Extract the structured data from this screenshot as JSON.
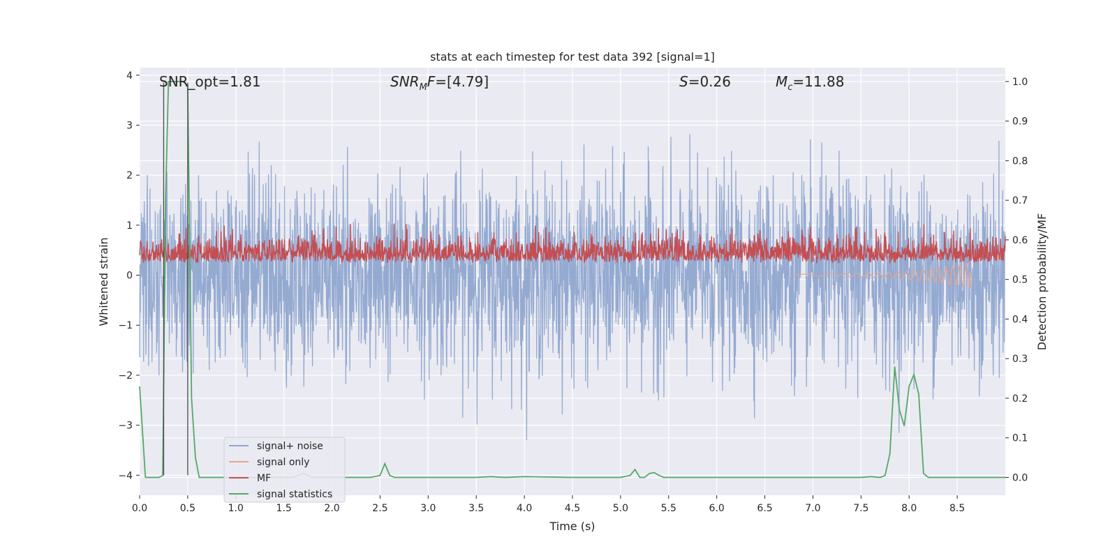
{
  "chart_data": {
    "type": "line",
    "title": "stats at each timestep for test data 392 [signal=1]",
    "xlabel": "Time (s)",
    "ylabel_left": "Whitened strain",
    "ylabel_right": "Detection probability/MF",
    "xlim": [
      0.0,
      9.0
    ],
    "ylim_left": [
      -4.4,
      4.15
    ],
    "ylim_right": [
      -0.045,
      1.035
    ],
    "x_ticks": [
      "0.0",
      "0.5",
      "1.0",
      "1.5",
      "2.0",
      "2.5",
      "3.0",
      "3.5",
      "4.0",
      "4.5",
      "5.0",
      "5.5",
      "6.0",
      "6.5",
      "7.0",
      "7.5",
      "8.0",
      "8.5"
    ],
    "y_ticks_left": [
      "-4",
      "-3",
      "-2",
      "-1",
      "0",
      "1",
      "2",
      "3",
      "4"
    ],
    "y_ticks_right": [
      "0.0",
      "0.1",
      "0.2",
      "0.3",
      "0.4",
      "0.5",
      "0.6",
      "0.7",
      "0.8",
      "0.9",
      "1.0"
    ],
    "grid": true,
    "legend_position": "lower-left",
    "annotations": {
      "snr_opt": "SNR_opt=1.81",
      "snr_mf_base": "SNR",
      "snr_mf_sub": "M",
      "snr_mf_rest": "F=[4.79]",
      "s_base": "S",
      "s_rest": "=0.26",
      "mc_base": "M",
      "mc_sub": "c",
      "mc_rest": "=11.88"
    },
    "vertical_lines_x": [
      0.25,
      0.5
    ],
    "series": [
      {
        "name": "signal+ noise",
        "color": "#8fa6cf",
        "description_range": [
          -3.3,
          3.7
        ]
      },
      {
        "name": "signal only",
        "color": "#e8a58c"
      },
      {
        "name": "MF",
        "color": "#c44e52"
      },
      {
        "name": "signal statistics",
        "color": "#55a868",
        "x": [
          0.0,
          0.06,
          0.1,
          0.15,
          0.2,
          0.24,
          0.27,
          0.3,
          0.35,
          0.4,
          0.45,
          0.5,
          0.54,
          0.58,
          0.62,
          0.7,
          1.0,
          1.5,
          1.6,
          1.7,
          1.8,
          2.0,
          2.4,
          2.5,
          2.55,
          2.6,
          2.65,
          3.0,
          3.5,
          3.65,
          3.8,
          4.0,
          4.5,
          5.0,
          5.1,
          5.15,
          5.2,
          5.25,
          5.3,
          5.35,
          5.4,
          5.45,
          5.5,
          5.8,
          6.0,
          7.0,
          7.5,
          7.6,
          7.7,
          7.75,
          7.8,
          7.85,
          7.9,
          7.95,
          8.0,
          8.05,
          8.1,
          8.15,
          8.2,
          8.25,
          8.5,
          9.0
        ],
        "y": [
          0.23,
          0.0,
          0.0,
          0.0,
          0.0,
          0.005,
          0.7,
          1.0,
          1.0,
          1.0,
          1.0,
          0.99,
          0.2,
          0.05,
          0.0,
          0.0,
          0.0,
          0.0,
          0.0,
          0.01,
          0.0,
          0.0,
          0.0,
          0.005,
          0.035,
          0.005,
          0.0,
          0.0,
          0.0,
          0.002,
          0.0,
          0.002,
          0.0,
          0.0,
          0.005,
          0.02,
          0.0,
          0.0,
          0.01,
          0.012,
          0.005,
          0.0,
          0.0,
          0.0,
          0.0,
          0.0,
          0.0,
          0.002,
          0.0,
          0.005,
          0.06,
          0.28,
          0.17,
          0.13,
          0.23,
          0.26,
          0.21,
          0.01,
          0.0,
          0.0,
          0.0,
          0.0
        ]
      }
    ]
  }
}
